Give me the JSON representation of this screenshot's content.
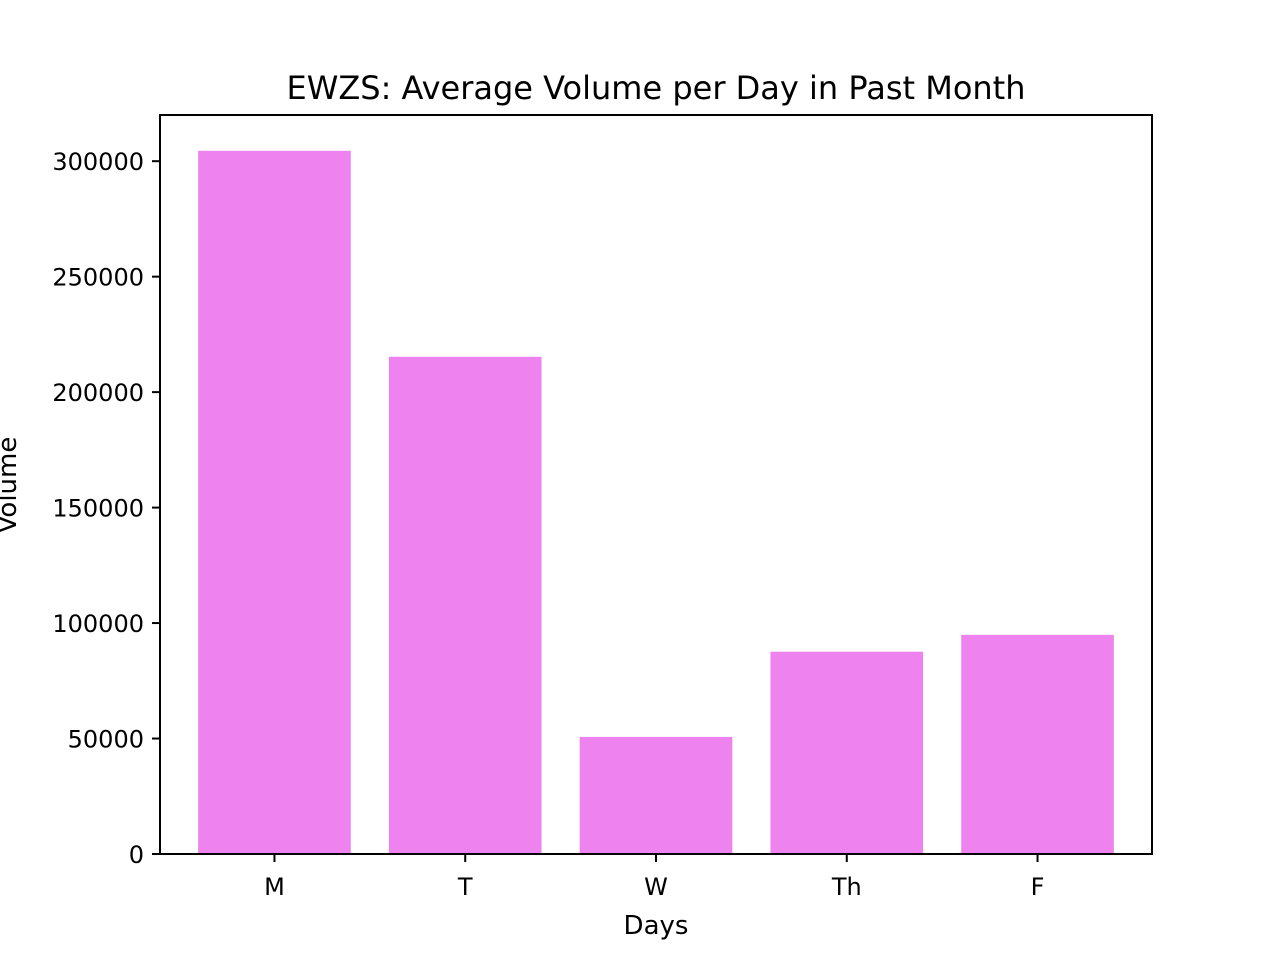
{
  "chart_data": {
    "type": "bar",
    "title": "EWZS: Average Volume per Day in Past Month",
    "xlabel": "Days",
    "ylabel": "Volume",
    "categories": [
      "M",
      "T",
      "W",
      "Th",
      "F"
    ],
    "values": [
      304500,
      215300,
      50700,
      87600,
      94900
    ],
    "ylim": [
      0,
      320000
    ],
    "yticks": [
      0,
      50000,
      100000,
      150000,
      200000,
      250000,
      300000
    ],
    "ytick_labels": [
      "0",
      "50000",
      "100000",
      "150000",
      "200000",
      "250000",
      "300000"
    ],
    "bar_color": "#ee82ee",
    "grid": false,
    "legend": "none"
  }
}
